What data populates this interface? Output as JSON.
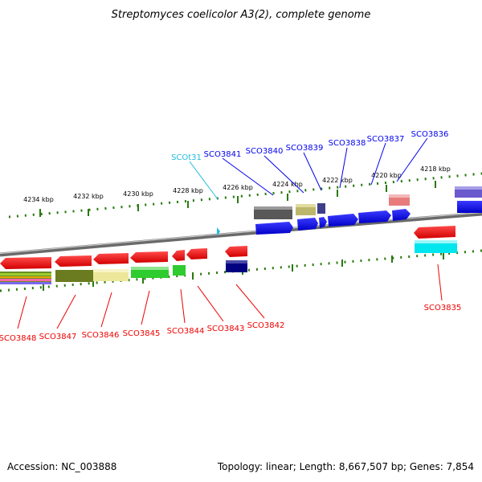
{
  "title": "Streptomyces coelicolor A3(2), complete genome",
  "footer": {
    "accession": "Accession: NC_003888",
    "stats": "Topology: linear; Length: 8,667,507 bp; Genes: 7,854"
  },
  "scale_labels": [
    "4234 kbp",
    "4232 kbp",
    "4230 kbp",
    "4228 kbp",
    "4226 kbp",
    "4224 kbp",
    "4222 kbp",
    "4220 kbp",
    "4218 kbp"
  ],
  "top_labels": [
    "SCOt31",
    "SCO3841",
    "SCO3840",
    "SCO3839",
    "SCO3838",
    "SCO3837",
    "SCO3836"
  ],
  "bottom_labels": [
    "SCO3848",
    "SCO3847",
    "SCO3846",
    "SCO3845",
    "SCO3844",
    "SCO3843",
    "SCO3842",
    "SCO3835"
  ],
  "colors": {
    "forward": "#0000ee",
    "reverse": "#ee0000",
    "trna": "#22bbdd",
    "tick": "#2a7a10",
    "backbone": "#707070"
  }
}
